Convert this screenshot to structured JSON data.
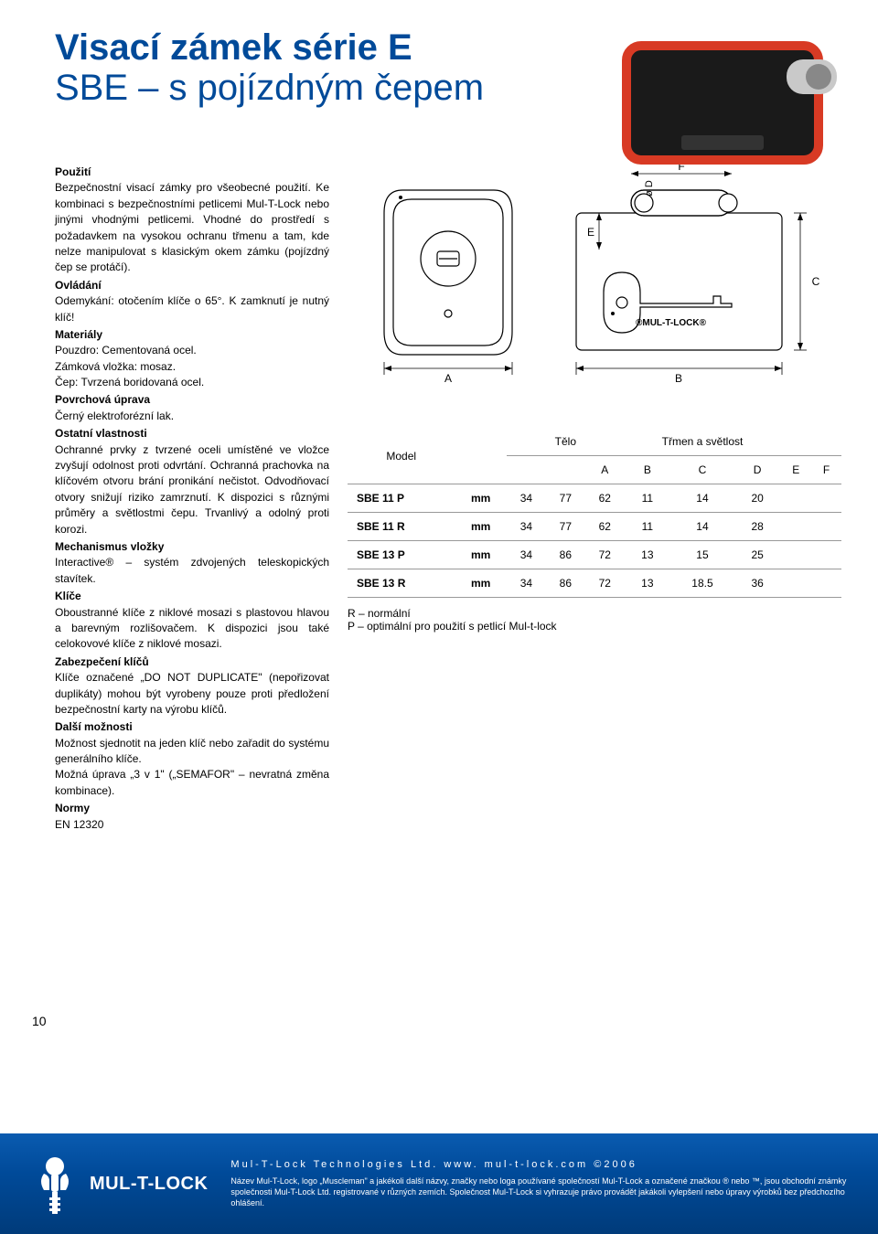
{
  "title": {
    "line1": "Visací zámek série E",
    "line2": "SBE – s pojízdným čepem"
  },
  "sections": [
    {
      "title": "Použití",
      "body": "Bezpečnostní visací zámky pro všeobecné použití. Ke kombinaci s bezpečnostními petlicemi Mul-T-Lock nebo jinými vhodnými petlicemi. Vhodné do prostředí s požadavkem na vysokou ochranu třmenu a tam, kde nelze manipulovat s klasickým okem zámku (pojízdný čep se protáčí)."
    },
    {
      "title": "Ovládání",
      "body": "Odemykání: otočením klíče o 65°. K zamknutí je nutný klíč!"
    },
    {
      "title": "Materiály",
      "body": "Pouzdro: Cementovaná ocel.\nZámková vložka: mosaz.\nČep: Tvrzená boridovaná ocel."
    },
    {
      "title": "Povrchová úprava",
      "body": "Černý elektroforézní lak."
    },
    {
      "title": "Ostatní vlastnosti",
      "body": "Ochranné prvky z tvrzené oceli umístěné ve vložce zvyšují odolnost proti odvrtání. Ochranná prachovka na klíčovém otvoru brání pronikání nečistot. Odvodňovací otvory snižují riziko zamrznutí. K dispozici s různými průměry a světlostmi čepu. Trvanlivý a odolný proti korozi."
    },
    {
      "title": "Mechanismus vložky",
      "body": "Interactive® – systém zdvojených teleskopických stavítek."
    },
    {
      "title": "Klíče",
      "body": "Oboustranné klíče z niklové mosazi s plastovou hlavou a barevným rozlišovačem. K dispozici jsou také celokovové klíče z niklové mosazi."
    },
    {
      "title": "Zabezpečení klíčů",
      "body": "Klíče označené „DO NOT DUPLICATE\" (nepořizovat duplikáty) mohou být vyrobeny pouze proti předložení bezpečnostní karty na výrobu klíčů."
    },
    {
      "title": "Další možnosti",
      "body": "Možnost sjednotit na jeden klíč nebo zařadit do systému generálního klíče.\nMožná úprava „3 v 1\" („SEMAFOR\" – nevratná změna kombinace)."
    },
    {
      "title": "Normy",
      "body": "EN 12320"
    }
  ],
  "diagram": {
    "labels": {
      "A": "A",
      "B": "B",
      "C": "C",
      "D": "ø D",
      "E": "E",
      "F": "F"
    },
    "brand": "MUL-T-LOCK",
    "stroke": "#000000",
    "fill": "#ffffff"
  },
  "table": {
    "headers": {
      "model": "Model",
      "body": "Tělo",
      "shackle": "Třmen a světlost",
      "unit": "mm",
      "cols": [
        "A",
        "B",
        "C",
        "D",
        "E",
        "F"
      ]
    },
    "rows": [
      {
        "model": "SBE 11 P",
        "values": [
          "34",
          "77",
          "62",
          "11",
          "14",
          "20"
        ]
      },
      {
        "model": "SBE 11 R",
        "values": [
          "34",
          "77",
          "62",
          "11",
          "14",
          "28"
        ]
      },
      {
        "model": "SBE 13 P",
        "values": [
          "34",
          "86",
          "72",
          "13",
          "15",
          "25"
        ]
      },
      {
        "model": "SBE 13 R",
        "values": [
          "34",
          "86",
          "72",
          "13",
          "18.5",
          "36"
        ]
      }
    ]
  },
  "legend": {
    "R": "R – normální",
    "P": "P – optimální pro použití s petlicí Mul-t-lock"
  },
  "pageNumber": "10",
  "footer": {
    "brand": "MUL-T-LOCK",
    "line1": "Mul-T-Lock Technologies Ltd. www. mul-t-lock.com ©2006",
    "line2": "Název Mul-T-Lock, logo „Muscleman\" a jakékoli další názvy, značky nebo loga používané společností Mul-T-Lock a označené značkou ® nebo ™, jsou obchodní známky společnosti Mul-T-Lock Ltd. registrované v různých zemích. Společnost Mul-T-Lock si vyhrazuje právo provádět jakákoli vylepšení nebo úpravy výrobků bez předchozího ohlášení."
  }
}
